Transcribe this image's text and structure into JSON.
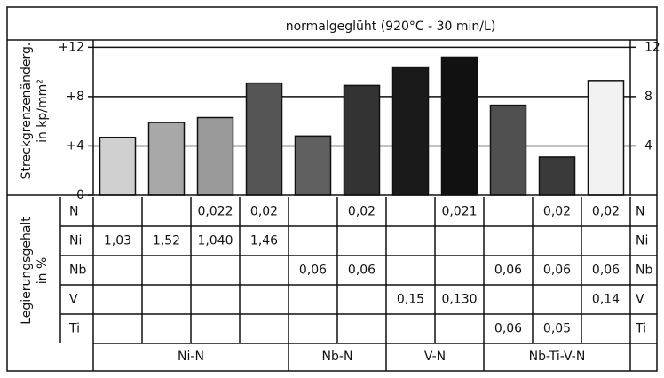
{
  "chart_data": {
    "type": "bar",
    "title": "normalgeglüht (920°C - 30 min/L)",
    "ylabel": [
      "Streckgrenzenänderg.",
      "in kp/mm²"
    ],
    "values": [
      4.7,
      5.9,
      6.3,
      9.1,
      4.8,
      8.9,
      10.4,
      11.2,
      7.3,
      3.1,
      9.3
    ],
    "colors": [
      "#d0d0d0",
      "#a8a8a8",
      "#9a9a9a",
      "#555555",
      "#606060",
      "#333333",
      "#1a1a1a",
      "#111111",
      "#505050",
      "#3a3a3a",
      "#f2f2f2"
    ],
    "ylim": [
      0,
      12.6
    ],
    "yticks": [
      {
        "value": 0,
        "label": "0"
      },
      {
        "value": 4,
        "label": "+4"
      },
      {
        "value": 8,
        "label": "+8"
      },
      {
        "value": 12,
        "label": "+12"
      }
    ],
    "y2lim": [
      0,
      12.6
    ],
    "y2ticks": [
      4,
      8,
      12
    ],
    "grid": true
  },
  "table": {
    "label": [
      "Legierungsgehalt",
      "in %"
    ],
    "rows": [
      {
        "name": "N",
        "cells": [
          null,
          null,
          "0,022",
          "0,02",
          null,
          "0,02",
          null,
          "0,021",
          null,
          "0,02",
          "0,02"
        ]
      },
      {
        "name": "Ni",
        "cells": [
          "1,03",
          "1,52",
          "1,040",
          "1,46",
          null,
          null,
          null,
          null,
          null,
          null,
          null
        ]
      },
      {
        "name": "Nb",
        "cells": [
          null,
          null,
          null,
          null,
          "0,06",
          "0,06",
          null,
          null,
          "0,06",
          "0,06",
          "0,06"
        ]
      },
      {
        "name": "V",
        "cells": [
          null,
          null,
          null,
          null,
          null,
          null,
          "0,15",
          "0,130",
          null,
          null,
          "0,14"
        ]
      },
      {
        "name": "Ti",
        "cells": [
          null,
          null,
          null,
          null,
          null,
          null,
          null,
          null,
          "0,06",
          "0,05",
          null
        ]
      }
    ],
    "groups": [
      {
        "label": "Ni-N",
        "span": 4
      },
      {
        "label": "Nb-N",
        "span": 2
      },
      {
        "label": "V-N",
        "span": 2
      },
      {
        "label": "Nb-Ti-V-N",
        "span": 3
      }
    ]
  }
}
